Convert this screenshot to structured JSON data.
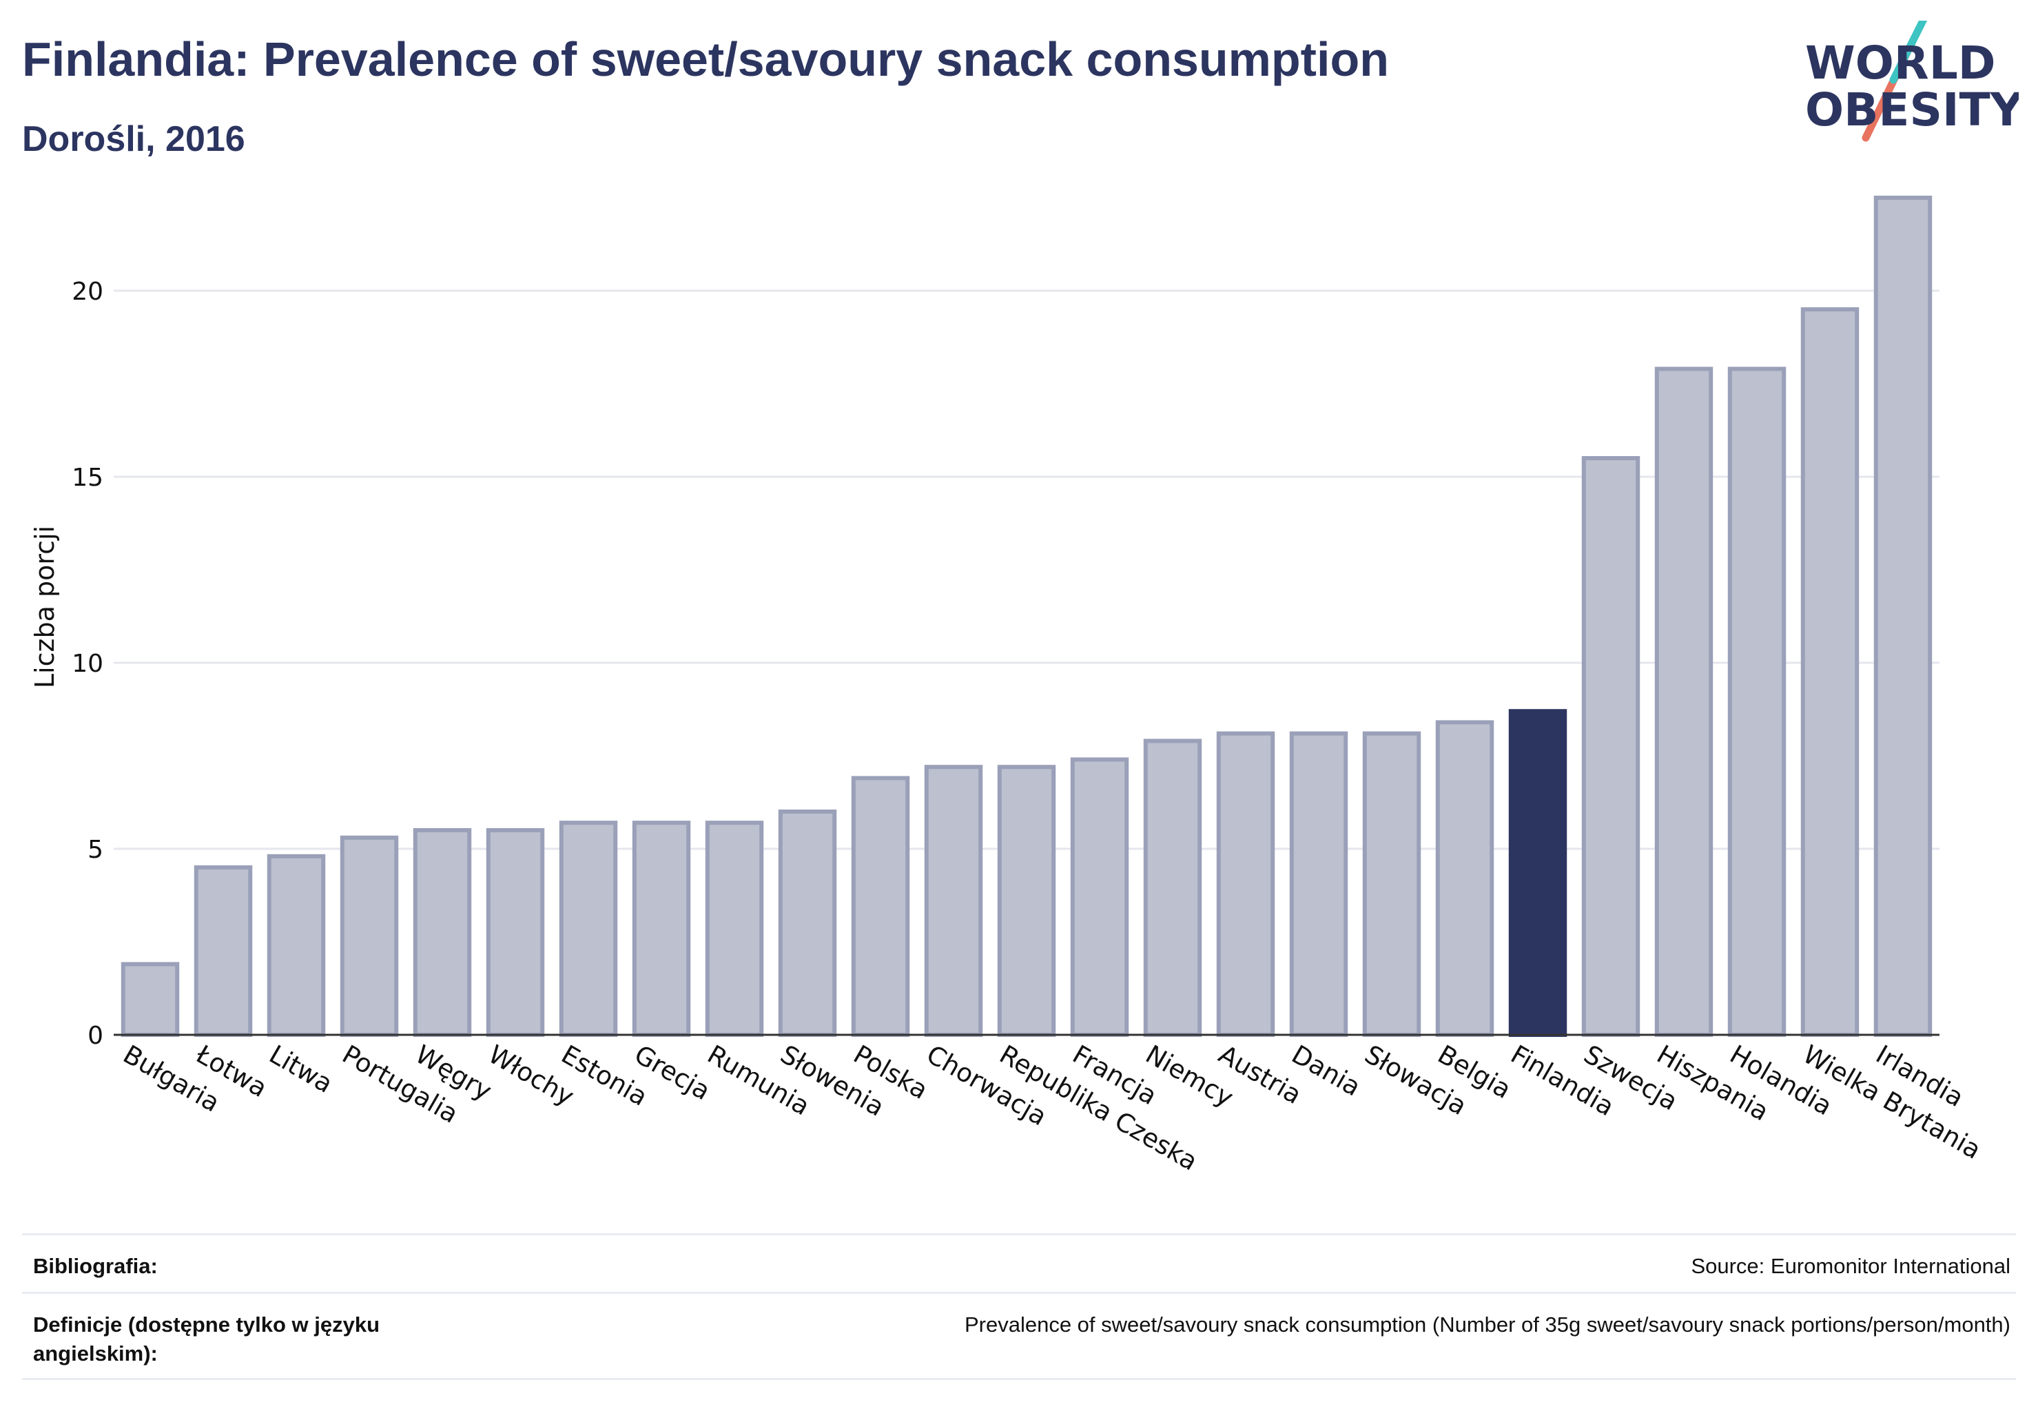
{
  "header": {
    "title": "Finlandia: Prevalence of sweet/savoury snack consumption",
    "subtitle": "Dorośli, 2016"
  },
  "logo": {
    "line1": "WORLD",
    "line2": "OBESITY",
    "colors": {
      "text": "#2c3560",
      "slash_teal": "#3ec4c2",
      "slash_coral": "#e8735f"
    }
  },
  "colors": {
    "bar": "#bcc0cf",
    "bar_border": "#9aa0b8",
    "highlight": "#2c3560",
    "grid": "#e6e7ee",
    "axis": "#333333",
    "text": "#111111"
  },
  "chart_data": {
    "type": "bar",
    "title": "",
    "xlabel": "",
    "ylabel": "Liczba porcji",
    "ylim": [
      0,
      23
    ],
    "yticks": [
      0,
      5,
      10,
      15,
      20
    ],
    "grid": true,
    "highlight": "Finlandia",
    "categories": [
      "Bułgaria",
      "Łotwa",
      "Litwa",
      "Portugalia",
      "Węgry",
      "Włochy",
      "Estonia",
      "Grecja",
      "Rumunia",
      "Słowenia",
      "Polska",
      "Chorwacja",
      "Republika Czeska",
      "Francja",
      "Niemcy",
      "Austria",
      "Dania",
      "Słowacja",
      "Belgia",
      "Finlandia",
      "Szwecja",
      "Hiszpania",
      "Holandia",
      "Wielka Brytania",
      "Irlandia"
    ],
    "values": [
      1.9,
      4.5,
      4.8,
      5.3,
      5.5,
      5.5,
      5.7,
      5.7,
      5.7,
      6.0,
      6.9,
      7.2,
      7.2,
      7.4,
      7.9,
      8.1,
      8.1,
      8.1,
      8.4,
      8.7,
      15.5,
      17.9,
      17.9,
      19.5,
      22.5
    ]
  },
  "footer": {
    "bibliography_label": "Bibliografia:",
    "bibliography_value": "Source: Euromonitor International",
    "definitions_label": "Definicje (dostępne tylko w języku angielskim):",
    "definitions_value": "Prevalence of sweet/savoury snack consumption (Number of 35g sweet/savoury snack portions/person/month)"
  }
}
